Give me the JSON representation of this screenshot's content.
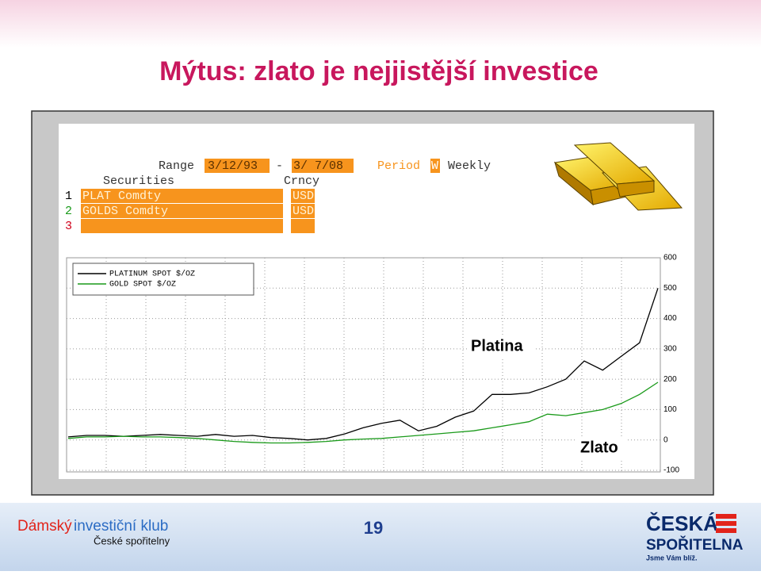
{
  "header": {
    "title": "Mýtus: zlato je nejjistější investice"
  },
  "screen": {
    "range_label": "Range",
    "range_start": "3/12/93",
    "range_dash": "-",
    "range_end": "3/ 7/08",
    "period_label": "Period",
    "period_code": "W",
    "period_name": "Weekly",
    "columns": [
      "Securities",
      "Crncy"
    ],
    "rows": [
      [
        "1",
        "PLAT Comdty",
        "USD"
      ],
      [
        "2",
        "GOLDS Comdty",
        "USD"
      ],
      [
        "3",
        "",
        ""
      ]
    ]
  },
  "chart_data": {
    "type": "line",
    "categories": [
      null,
      null,
      null,
      null,
      null,
      null,
      null,
      null,
      null,
      null,
      null,
      null,
      null,
      null,
      null,
      null,
      null,
      null,
      null,
      null,
      null,
      null,
      null,
      null,
      null,
      null,
      null,
      null,
      null,
      null,
      null,
      null,
      null
    ],
    "series": [
      {
        "name": "PLATINUM SPOT $/OZ",
        "color": "#000000",
        "values": [
          10,
          15,
          15,
          12,
          15,
          18,
          15,
          12,
          18,
          12,
          15,
          8,
          5,
          0,
          5,
          20,
          40,
          55,
          65,
          30,
          45,
          75,
          95,
          150,
          150,
          155,
          175,
          200,
          260,
          230,
          275,
          320,
          500
        ]
      },
      {
        "name": "GOLD SPOT $/OZ",
        "color": "#1a9a1a",
        "values": [
          5,
          10,
          10,
          12,
          10,
          10,
          8,
          5,
          0,
          -5,
          -8,
          -10,
          -10,
          -8,
          -5,
          0,
          3,
          5,
          10,
          15,
          20,
          25,
          30,
          40,
          50,
          60,
          85,
          80,
          90,
          100,
          120,
          150,
          190
        ]
      }
    ],
    "ylim": [
      -100,
      600
    ],
    "yticks": [
      -100,
      0,
      100,
      200,
      300,
      400,
      500,
      600
    ],
    "grid": true,
    "annotations": [
      "Platina",
      "Zlato"
    ]
  },
  "footer": {
    "club_a": "Dámský",
    "club_b": "investiční klub",
    "club_c": "České spořitelny",
    "page": "19",
    "logo_a": "ČESKÁ",
    "logo_b": "SPOŘITELNA",
    "logo_c": "Jsme Vám blíž."
  }
}
